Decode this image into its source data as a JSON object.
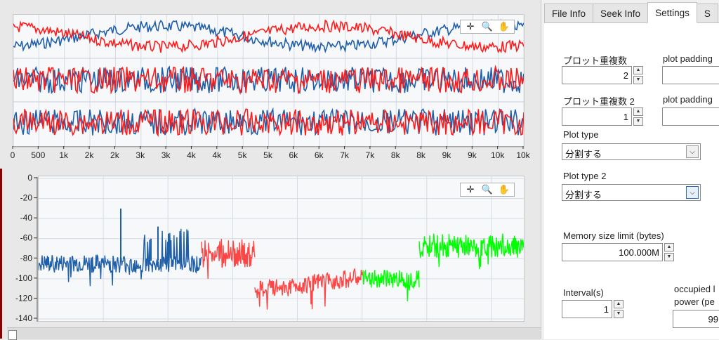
{
  "tabs": [
    "File Info",
    "Seek Info",
    "Settings",
    "S"
  ],
  "active_tab": "Settings",
  "settings": {
    "plot_overlap_label": "プロット重複数",
    "plot_overlap_value": "2",
    "plot_padding_label": "plot padding",
    "plot_overlap2_label": "プロット重複数 2",
    "plot_overlap2_value": "1",
    "plot_padding2_label": "plot padding",
    "plot_type_label": "Plot type",
    "plot_type_value": "分割する",
    "plot_type2_label": "Plot type 2",
    "plot_type2_value": "分割する",
    "memory_label": "Memory size limit (bytes)",
    "memory_value": "100.000M",
    "interval_label": "Interval(s)",
    "interval_value": "1",
    "occupied_label_1": "occupied l",
    "occupied_label_2": "power (pe",
    "occupied_value": "99"
  },
  "toolbar_icons": [
    "crosshair-icon",
    "zoom-icon",
    "pan-hand-icon"
  ],
  "chart_data": [
    {
      "type": "line",
      "title": "",
      "x_ticks": [
        "0",
        "500",
        "1k",
        "2k",
        "2k",
        "3k",
        "3k",
        "4k",
        "4k",
        "5k",
        "5k",
        "6k",
        "6k",
        "7k",
        "7k",
        "8k",
        "8k",
        "9k",
        "9k",
        "10k",
        "10k"
      ],
      "xlim": [
        0,
        10000
      ],
      "series": [
        {
          "color": "#1f5fa8",
          "shape": "noisy sine",
          "lane": 1
        },
        {
          "color": "#ff1a1a",
          "shape": "noisy sine (inverted)",
          "lane": 1
        },
        {
          "color": "#1f5fa8",
          "shape": "noise",
          "lane": 2
        },
        {
          "color": "#ff1a1a",
          "shape": "noise",
          "lane": 2
        },
        {
          "color": "#1f5fa8",
          "shape": "noise",
          "lane": 3
        },
        {
          "color": "#ff1a1a",
          "shape": "noise",
          "lane": 3
        }
      ],
      "grid": true
    },
    {
      "type": "line",
      "title": "",
      "y_ticks": [
        "0",
        "-20",
        "-40",
        "-60",
        "-80",
        "-100",
        "-120",
        "-140"
      ],
      "ylim": [
        -140,
        0
      ],
      "series": [
        {
          "color": "#1f5fa8",
          "level": -85,
          "spikes": [
            -30,
            -48,
            -55
          ]
        },
        {
          "color": "#ff4444",
          "level": -80
        },
        {
          "color": "#ff4444",
          "level": -105
        },
        {
          "color": "#00ff00",
          "level": -100
        },
        {
          "color": "#00ff00",
          "level": -70
        }
      ],
      "grid": true
    }
  ]
}
